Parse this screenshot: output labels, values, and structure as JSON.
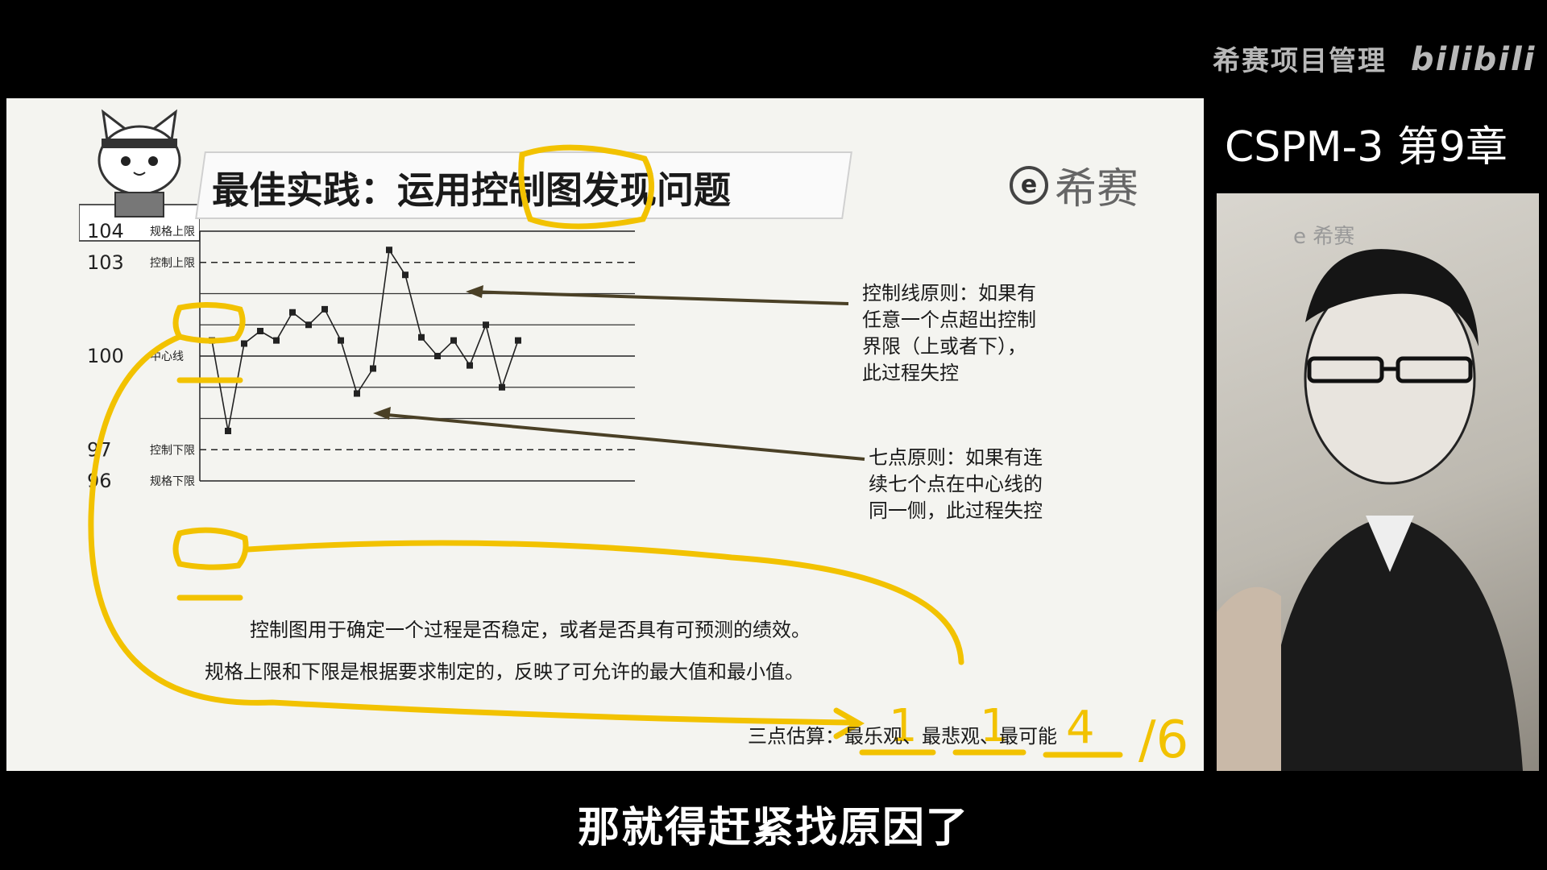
{
  "header": {
    "brand": "希赛项目管理",
    "platform_logo": "bilibili",
    "chapter": "CSPM-3 第9章"
  },
  "slide": {
    "title": "最佳实践：运用控制图发现问题",
    "logo_text": "希赛",
    "notes": {
      "control_rule": "控制线原则：如果有\n任意一个点超出控制\n界限（上或者下），\n此过程失控",
      "seven_point_rule": "七点原则：如果有连\n续七个点在中心线的\n同一侧，此过程失控"
    },
    "captions": {
      "line1": "控制图用于确定一个过程是否稳定，或者是否具有可预测的绩效。",
      "line2": "规格上限和下限是根据要求制定的，反映了可允许的最大值和最小值。",
      "three_point": "三点估算：",
      "estimates": [
        "最乐观、",
        "最悲观、",
        "最可能"
      ]
    },
    "handwriting": {
      "a": "1",
      "b": "1",
      "c": "4",
      "d": "/6"
    }
  },
  "chart_data": {
    "type": "line",
    "y_ticks": [
      {
        "value": 104,
        "label": "104",
        "name": "规格上限",
        "style": "solid"
      },
      {
        "value": 103,
        "label": "103",
        "name": "控制上限",
        "style": "dashed"
      },
      {
        "value": 100,
        "label": "100",
        "name": "中心线",
        "style": "solid"
      },
      {
        "value": 97,
        "label": "97",
        "name": "控制下限",
        "style": "dashed"
      },
      {
        "value": 96,
        "label": "96",
        "name": "规格下限",
        "style": "solid"
      }
    ],
    "gridlines": [
      102,
      101,
      99,
      98
    ],
    "ylim": [
      96,
      104
    ],
    "values": [
      100.5,
      97.6,
      100.4,
      100.8,
      100.5,
      101.4,
      101.0,
      101.5,
      100.5,
      98.8,
      99.6,
      103.4,
      102.6,
      100.6,
      100.0,
      100.5,
      99.7,
      101.0,
      99.0,
      100.5
    ],
    "color": "#222222"
  },
  "subtitle": "那就得赶紧找原因了",
  "colors": {
    "highlight": "#f2c200",
    "arrow": "#4a4026"
  }
}
